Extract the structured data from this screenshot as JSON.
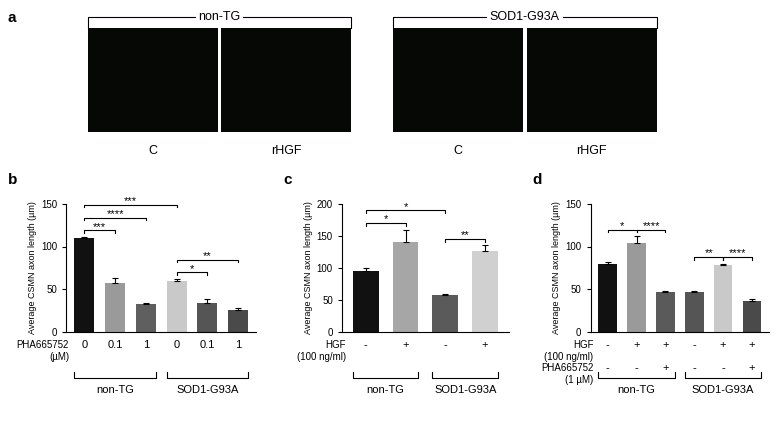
{
  "panel_a": {
    "label": "a",
    "groups": [
      {
        "name": "non-TG",
        "images": [
          "C",
          "rHGF"
        ]
      },
      {
        "name": "SOD1-G93A",
        "images": [
          "C",
          "rHGF"
        ]
      }
    ]
  },
  "chart_data": [
    {
      "label": "b",
      "type": "bar",
      "y_label": "Average CSMN axon length (µm)",
      "x_rows": [
        {
          "title": "PHA665752\n(µM)",
          "labels": [
            "0",
            "0.1",
            "1",
            "0",
            "0.1",
            "1"
          ]
        }
      ],
      "groups": [
        {
          "name": "non-TG",
          "size": 3
        },
        {
          "name": "SOD1-G93A",
          "size": 3
        }
      ],
      "values": [
        110,
        57,
        32,
        60,
        33,
        25
      ],
      "errors": [
        1.5,
        6,
        2,
        2,
        5,
        3
      ],
      "colors": [
        "#111111",
        "#9a9a9a",
        "#5f5f5f",
        "#c9c9c9",
        "#555555",
        "#4a4a4a"
      ],
      "ylim": [
        0,
        150
      ],
      "yticks": [
        0,
        50,
        100,
        150
      ],
      "significance": [
        {
          "from": 0,
          "to": 1,
          "label": "***"
        },
        {
          "from": 0,
          "to": 2,
          "label": "****"
        },
        {
          "from": 0,
          "to": 3,
          "label": "***"
        },
        {
          "from": 3,
          "to": 4,
          "label": "*"
        },
        {
          "from": 3,
          "to": 5,
          "label": "**"
        }
      ]
    },
    {
      "label": "c",
      "type": "bar",
      "y_label": "Average CSMN axon length (µm)",
      "x_rows": [
        {
          "title": "HGF\n(100 ng/ml)",
          "labels": [
            "-",
            "+",
            "-",
            "+"
          ]
        }
      ],
      "groups": [
        {
          "name": "non-TG",
          "size": 2
        },
        {
          "name": "SOD1-G93A",
          "size": 2
        }
      ],
      "values": [
        95,
        140,
        57,
        127
      ],
      "errors": [
        4,
        20,
        2,
        8
      ],
      "colors": [
        "#111111",
        "#a6a6a6",
        "#5a5a5a",
        "#d0d0d0"
      ],
      "ylim": [
        0,
        200
      ],
      "yticks": [
        0,
        50,
        100,
        150,
        200
      ],
      "significance": [
        {
          "from": 0,
          "to": 1,
          "label": "*"
        },
        {
          "from": 2,
          "to": 3,
          "label": "**"
        },
        {
          "from": 0,
          "to": 2,
          "label": "*"
        }
      ]
    },
    {
      "label": "d",
      "type": "bar",
      "y_label": "Average CSMN axon length (µm)",
      "x_rows": [
        {
          "title": "HGF\n(100 ng/ml)",
          "labels": [
            "-",
            "+",
            "+",
            "-",
            "+",
            "+"
          ]
        },
        {
          "title": "PHA665752\n(1 µM)",
          "labels": [
            "-",
            "-",
            "+",
            "-",
            "-",
            "+"
          ]
        }
      ],
      "groups": [
        {
          "name": "non-TG",
          "size": 3
        },
        {
          "name": "SOD1-G93A",
          "size": 3
        }
      ],
      "values": [
        79,
        104,
        46,
        46,
        78,
        36
      ],
      "errors": [
        3,
        8,
        2,
        2,
        2,
        2
      ],
      "colors": [
        "#111111",
        "#9a9a9a",
        "#5a5a5a",
        "#555555",
        "#c9c9c9",
        "#4a4a4a"
      ],
      "ylim": [
        0,
        150
      ],
      "yticks": [
        0,
        50,
        100,
        150
      ],
      "significance": [
        {
          "from": 0,
          "to": 1,
          "label": "*"
        },
        {
          "from": 1,
          "to": 2,
          "label": "****"
        },
        {
          "from": 3,
          "to": 4,
          "label": "**"
        },
        {
          "from": 4,
          "to": 5,
          "label": "****"
        }
      ]
    }
  ]
}
